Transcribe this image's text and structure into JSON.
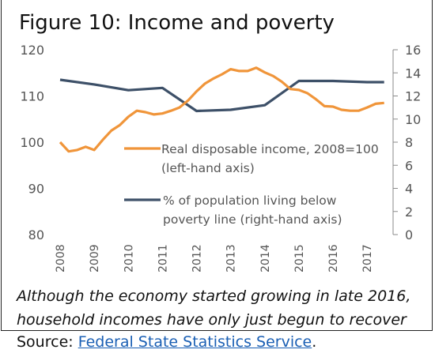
{
  "figure": {
    "title": "Figure 10: Income and poverty",
    "caption_line1": "Although the economy started growing in late 2016,",
    "caption_line2": "household incomes have only just begun to recover",
    "source_label": "Source: ",
    "source_link": "Federal State Statistics Service",
    "source_period": "."
  },
  "colors": {
    "income": "#f0953a",
    "poverty": "#3d5068",
    "axis": "#8a8a8a",
    "text": "#555555"
  },
  "chart_data": {
    "type": "line",
    "x_ticks": [
      "2008",
      "2009",
      "2010",
      "2011",
      "2012",
      "2013",
      "2014",
      "2015",
      "2016",
      "2017"
    ],
    "xlim": [
      2008,
      2017.6
    ],
    "left_axis": {
      "ticks": [
        "80",
        "90",
        "100",
        "110",
        "120"
      ],
      "ylim": [
        80,
        120
      ]
    },
    "right_axis": {
      "ticks": [
        "0",
        "2",
        "4",
        "6",
        "8",
        "10",
        "12",
        "14",
        "16"
      ],
      "ylim": [
        0,
        16
      ]
    },
    "grid": false,
    "series": [
      {
        "name": "Real disposable income, 2008=100 (left-hand axis)",
        "name_line1": "Real disposable income, 2008=100",
        "name_line2": "(left-hand axis)",
        "axis": "left",
        "x": [
          2008.0,
          2008.25,
          2008.5,
          2008.75,
          2009.0,
          2009.25,
          2009.5,
          2009.75,
          2010.0,
          2010.25,
          2010.5,
          2010.75,
          2011.0,
          2011.25,
          2011.5,
          2011.75,
          2012.0,
          2012.25,
          2012.5,
          2012.75,
          2013.0,
          2013.25,
          2013.5,
          2013.75,
          2014.0,
          2014.25,
          2014.5,
          2014.75,
          2015.0,
          2015.25,
          2015.5,
          2015.75,
          2016.0,
          2016.25,
          2016.5,
          2016.75,
          2017.0,
          2017.25,
          2017.5
        ],
        "values": [
          100,
          98,
          98.3,
          99,
          98.3,
          100.5,
          102.5,
          103.7,
          105.5,
          106.8,
          106.5,
          106,
          106.2,
          106.8,
          107.5,
          109,
          111,
          112.7,
          113.8,
          114.7,
          115.8,
          115.4,
          115.4,
          116.1,
          115.1,
          114.3,
          113.1,
          111.5,
          111.3,
          110.6,
          109.3,
          107.8,
          107.7,
          107,
          106.8,
          106.8,
          107.5,
          108.3,
          108.5
        ]
      },
      {
        "name": "% of population living below poverty line (right-hand axis)",
        "name_line1": "% of population living below",
        "name_line2": "poverty line (right-hand axis)",
        "axis": "right",
        "x": [
          2008.0,
          2009.0,
          2010.0,
          2011.0,
          2012.0,
          2013.0,
          2014.0,
          2015.0,
          2016.0,
          2017.0,
          2017.5
        ],
        "values": [
          13.4,
          13.0,
          12.5,
          12.7,
          10.7,
          10.8,
          11.2,
          13.3,
          13.3,
          13.2,
          13.2
        ]
      }
    ]
  }
}
